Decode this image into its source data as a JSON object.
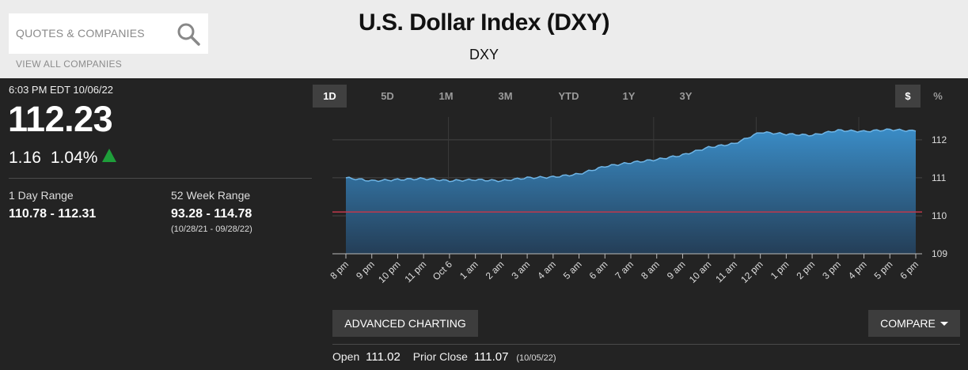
{
  "search": {
    "placeholder": "QUOTES & COMPANIES",
    "view_all": "VIEW ALL COMPANIES"
  },
  "header": {
    "title": "U.S. Dollar Index (DXY)",
    "symbol": "DXY"
  },
  "quote": {
    "timestamp": "6:03 PM EDT 10/06/22",
    "price": "112.23",
    "change": "1.16",
    "change_pct": "1.04%",
    "direction": "up",
    "up_color": "#1e9e3a",
    "day_range_label": "1 Day Range",
    "day_range": "110.78 - 112.31",
    "week52_label": "52 Week Range",
    "week52": "93.28 - 114.78",
    "week52_dates": "(10/28/21 - 09/28/22)"
  },
  "tabs": [
    {
      "label": "1D",
      "active": true
    },
    {
      "label": "5D",
      "active": false
    },
    {
      "label": "1M",
      "active": false
    },
    {
      "label": "3M",
      "active": false
    },
    {
      "label": "YTD",
      "active": false
    },
    {
      "label": "1Y",
      "active": false
    },
    {
      "label": "3Y",
      "active": false
    }
  ],
  "units": {
    "dollar": "$",
    "percent": "%"
  },
  "chart_data": {
    "type": "area",
    "x": [
      "8 pm",
      "9 pm",
      "10 pm",
      "11 pm",
      "Oct 6",
      "1 am",
      "2 am",
      "3 am",
      "4 am",
      "5 am",
      "6 am",
      "7 am",
      "8 am",
      "9 am",
      "10 am",
      "11 am",
      "12 pm",
      "1 pm",
      "2 pm",
      "3 pm",
      "4 pm",
      "5 pm",
      "6 pm"
    ],
    "series": [
      {
        "values": [
          111.0,
          110.92,
          110.95,
          110.98,
          110.92,
          110.95,
          110.92,
          111.0,
          111.02,
          111.1,
          111.3,
          111.4,
          111.48,
          111.6,
          111.8,
          111.9,
          112.2,
          112.15,
          112.12,
          112.25,
          112.22,
          112.27,
          112.23
        ],
        "color": "#3a8cc6"
      }
    ],
    "prior_close": 111.07,
    "prior_close_color": "#c0394b",
    "ylim": [
      109,
      112.6
    ],
    "yticks": [
      109,
      110,
      111,
      112
    ],
    "grid": true
  },
  "buttons": {
    "advanced": "ADVANCED CHARTING",
    "compare": "COMPARE"
  },
  "stats": {
    "open_label": "Open",
    "open": "111.02",
    "prior_close_label": "Prior Close",
    "prior_close": "111.07",
    "prior_close_date": "(10/05/22)"
  }
}
